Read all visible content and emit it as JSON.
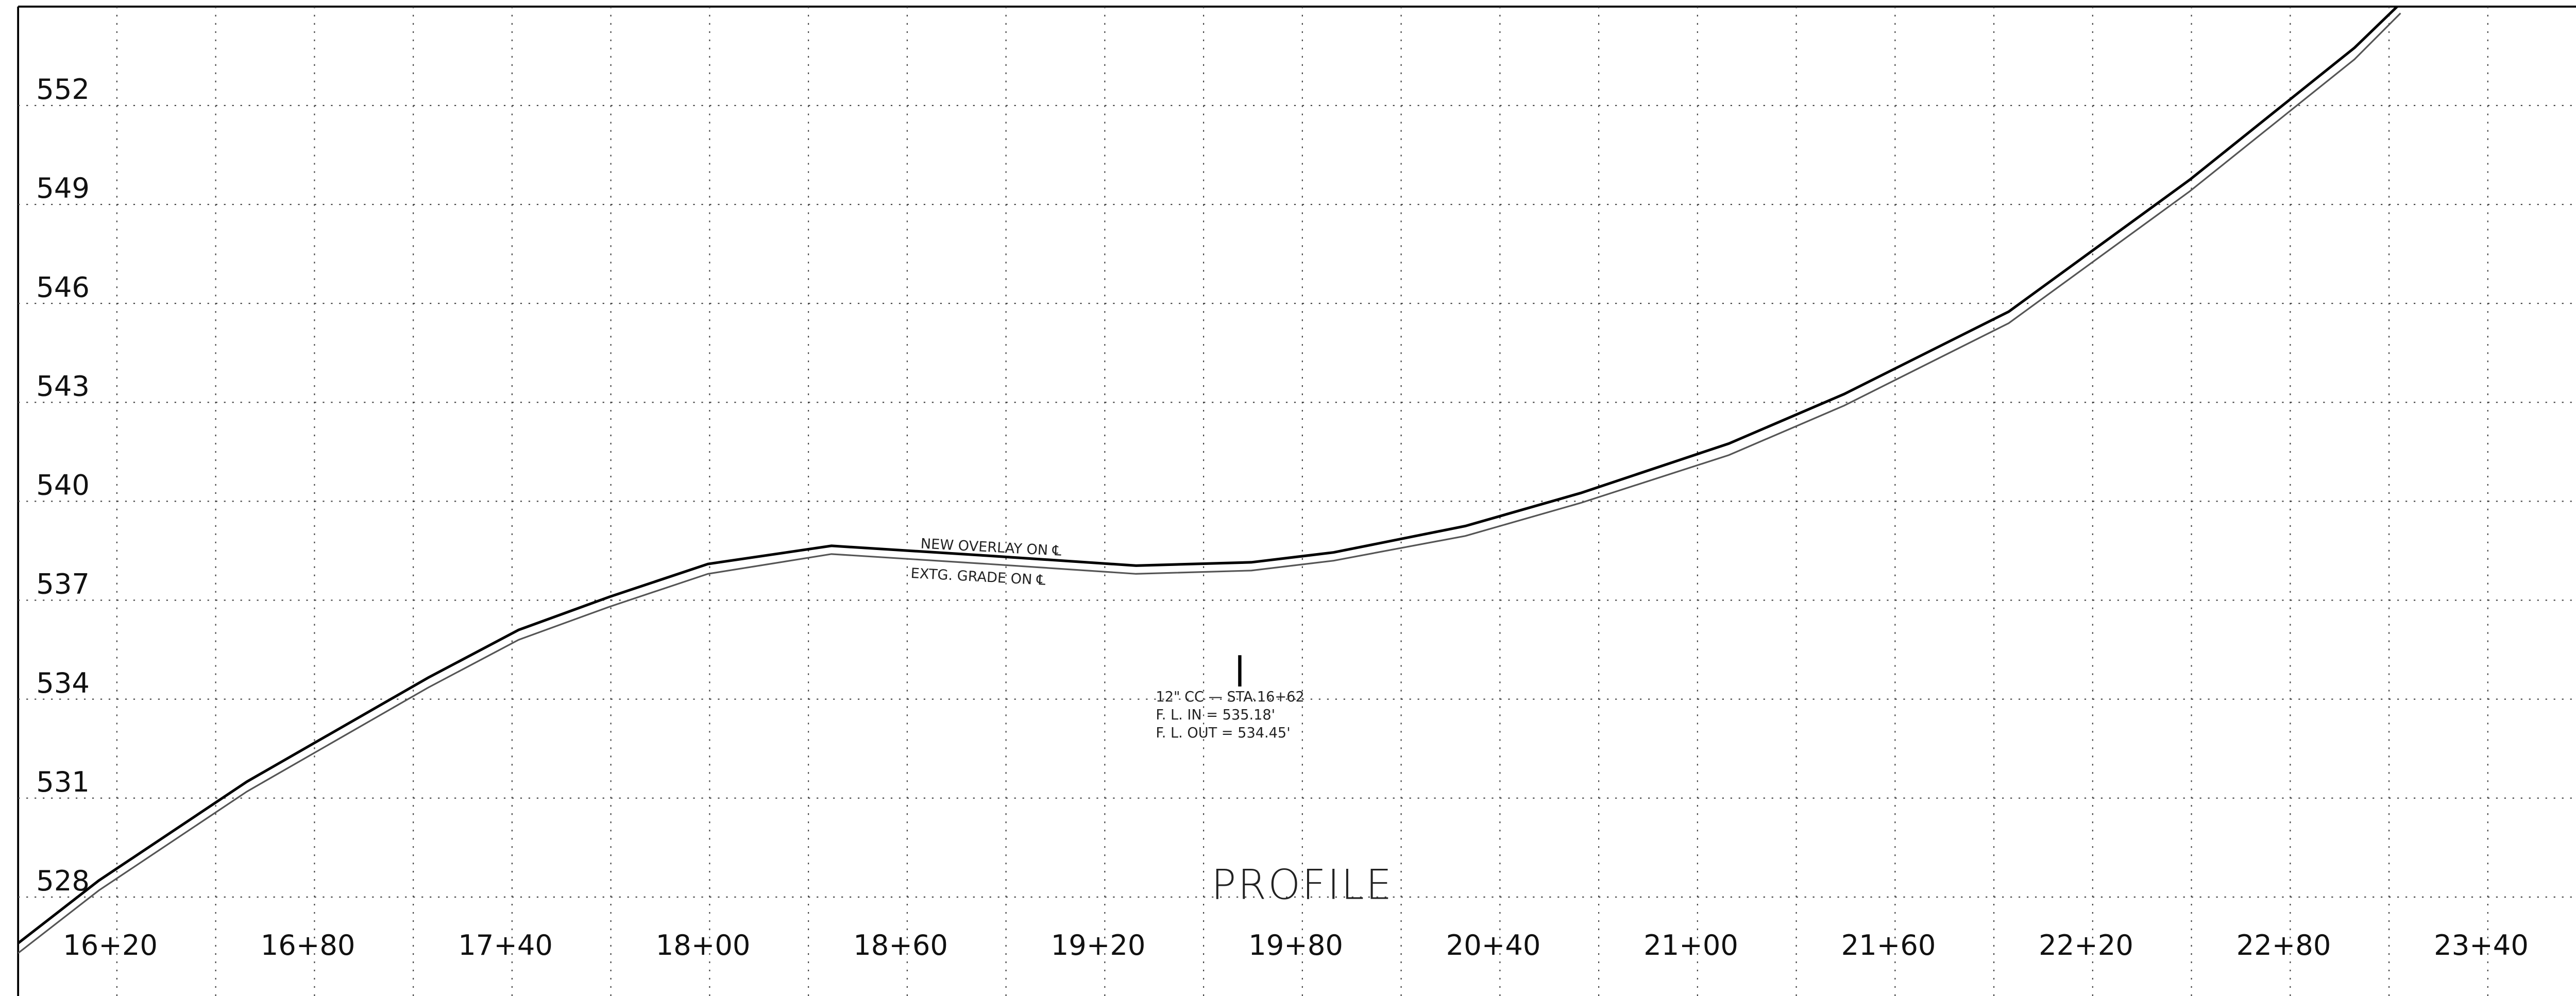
{
  "chart_data": {
    "type": "line",
    "title": "PROFILE",
    "annotations": [
      "NEW OVERLAY ON ℄",
      "EXTG. GRADE ON ℄",
      "12\" CC — STA.16+62",
      "F. L. IN = 535.18'",
      "F. L. OUT = 534.45'"
    ],
    "x": [
      1590,
      1614.5,
      1659.5,
      1714.5,
      1742,
      1769.5,
      1799.5,
      1837,
      1884.5,
      1929.5,
      1964.5,
      1989.5,
      2029.5,
      2064.5,
      2109.5,
      2144.5,
      2194.5,
      2249.5,
      2274.5,
      2299.5,
      2313.5
    ],
    "series": [
      {
        "name": "NEW OVERLAY ON ℄",
        "color": "#000000",
        "values": [
          526.6,
          528.5,
          531.5,
          534.65,
          536.1,
          537.1,
          538.1,
          538.65,
          538.35,
          538.05,
          538.15,
          538.45,
          539.25,
          540.25,
          541.75,
          543.25,
          545.75,
          549.75,
          551.75,
          553.75,
          555.1
        ]
      },
      {
        "name": "EXTG. GRADE ON ℄",
        "color": "#555555",
        "values": [
          526.3,
          528.2,
          531.2,
          534.35,
          535.8,
          536.8,
          537.8,
          538.4,
          538.1,
          537.8,
          537.9,
          538.2,
          538.95,
          539.95,
          541.4,
          542.9,
          545.4,
          549.4,
          551.4,
          553.4,
          554.8
        ]
      }
    ],
    "xlim": [
      1590,
      2368.5
    ],
    "ylim": [
      525,
      555
    ],
    "xticks": [
      {
        "value": 1620,
        "label": "16+20"
      },
      {
        "value": 1680,
        "label": "16+80"
      },
      {
        "value": 1740,
        "label": "17+40"
      },
      {
        "value": 1800,
        "label": "18+00"
      },
      {
        "value": 1860,
        "label": "18+60"
      },
      {
        "value": 1920,
        "label": "19+20"
      },
      {
        "value": 1980,
        "label": "19+80"
      },
      {
        "value": 2040,
        "label": "20+40"
      },
      {
        "value": 2100,
        "label": "21+00"
      },
      {
        "value": 2160,
        "label": "21+60"
      },
      {
        "value": 2220,
        "label": "22+20"
      },
      {
        "value": 2280,
        "label": "22+80"
      },
      {
        "value": 2340,
        "label": "23+40"
      }
    ],
    "xgrid": [
      1620,
      1650,
      1680,
      1710,
      1740,
      1770,
      1800,
      1830,
      1860,
      1890,
      1920,
      1950,
      1980,
      2010,
      2040,
      2070,
      2100,
      2130,
      2160,
      2190,
      2220,
      2250,
      2280,
      2310,
      2340
    ],
    "yticks": [
      528,
      531,
      534,
      537,
      540,
      543,
      546,
      549,
      552
    ],
    "grid": true
  }
}
